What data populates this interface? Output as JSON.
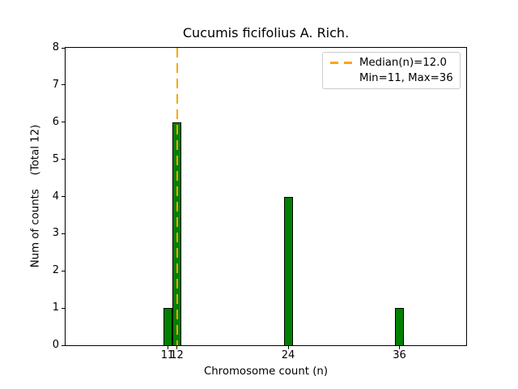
{
  "title": "Cucumis ficifolius A. Rich.",
  "axis": {
    "xlabel": "Chromosome count (n)",
    "ylabel": "Num of counts    (Total 12)",
    "x_tick_labels": [
      "11",
      "12",
      "24",
      "36"
    ],
    "y_tick_labels": [
      "0",
      "1",
      "2",
      "3",
      "4",
      "5",
      "6",
      "7",
      "8"
    ]
  },
  "legend": {
    "median_label": "Median(n)=12.0",
    "minmax_label": "Min=11, Max=36"
  },
  "colors": {
    "bar_fill": "#008000",
    "bar_edge": "#000000",
    "median_line": "#FFA500",
    "legend_border": "#cccccc",
    "axis_color": "#000000",
    "background": "#ffffff"
  },
  "chart_data": {
    "type": "bar",
    "title": "Cucumis ficifolius A. Rich.",
    "xlabel": "Chromosome count (n)",
    "ylabel": "Num of counts    (Total 12)",
    "x": [
      11,
      12,
      24,
      36
    ],
    "values": [
      1,
      6,
      4,
      1
    ],
    "total_counts": 12,
    "median_n": 12.0,
    "min_n": 11,
    "max_n": 36,
    "median_line_x": 12,
    "bar_width_data_units": 1,
    "xlim": [
      0,
      43.2
    ],
    "ylim": [
      0,
      8
    ],
    "x_ticks": [
      11,
      12,
      24,
      36
    ],
    "y_ticks": [
      0,
      1,
      2,
      3,
      4,
      5,
      6,
      7,
      8
    ],
    "grid": false,
    "legend_position": "upper right",
    "legend_entries": [
      "Median(n)=12.0",
      "Min=11, Max=36"
    ]
  }
}
